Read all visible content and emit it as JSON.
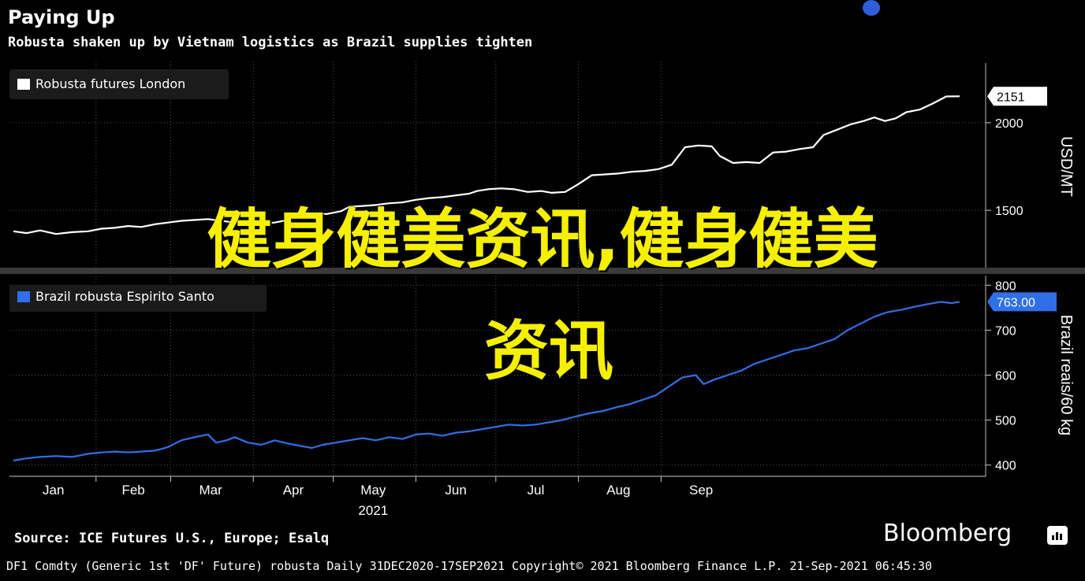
{
  "header": {
    "title": "Paying Up",
    "subtitle": "Robusta shaken up by Vietnam logistics as Brazil supplies tighten"
  },
  "overlay": {
    "line1": "健身健美资讯,健身健美",
    "line2": "资讯"
  },
  "chart_data": {
    "type": "line",
    "x_label": "2021",
    "months": [
      "Jan",
      "Feb",
      "Mar",
      "Apr",
      "May",
      "Jun",
      "Jul",
      "Aug",
      "Sep"
    ],
    "panels": [
      {
        "series_name": "Robusta futures London",
        "color": "#ffffff",
        "ylabel": "USD/MT",
        "yticks": [
          1500,
          2000
        ],
        "ylim": [
          1150,
          2350
        ],
        "last_value_label": "2151",
        "points": [
          [
            0,
            1380
          ],
          [
            5,
            1370
          ],
          [
            10,
            1385
          ],
          [
            16,
            1365
          ],
          [
            22,
            1375
          ],
          [
            28,
            1380
          ],
          [
            33,
            1395
          ],
          [
            38,
            1400
          ],
          [
            43,
            1410
          ],
          [
            48,
            1405
          ],
          [
            53,
            1420
          ],
          [
            58,
            1430
          ],
          [
            63,
            1440
          ],
          [
            68,
            1445
          ],
          [
            73,
            1450
          ],
          [
            78,
            1440
          ],
          [
            83,
            1430
          ],
          [
            88,
            1435
          ],
          [
            93,
            1425
          ],
          [
            98,
            1430
          ],
          [
            103,
            1445
          ],
          [
            108,
            1460
          ],
          [
            113,
            1475
          ],
          [
            118,
            1480
          ],
          [
            123,
            1495
          ],
          [
            126,
            1520
          ],
          [
            131,
            1525
          ],
          [
            136,
            1530
          ],
          [
            141,
            1540
          ],
          [
            146,
            1545
          ],
          [
            151,
            1560
          ],
          [
            156,
            1570
          ],
          [
            161,
            1575
          ],
          [
            166,
            1585
          ],
          [
            171,
            1595
          ],
          [
            174,
            1610
          ],
          [
            178,
            1620
          ],
          [
            183,
            1625
          ],
          [
            188,
            1620
          ],
          [
            193,
            1605
          ],
          [
            198,
            1610
          ],
          [
            202,
            1600
          ],
          [
            207,
            1605
          ],
          [
            212,
            1650
          ],
          [
            217,
            1700
          ],
          [
            222,
            1705
          ],
          [
            227,
            1710
          ],
          [
            232,
            1720
          ],
          [
            237,
            1725
          ],
          [
            242,
            1735
          ],
          [
            247,
            1760
          ],
          [
            252,
            1860
          ],
          [
            257,
            1870
          ],
          [
            262,
            1865
          ],
          [
            265,
            1810
          ],
          [
            270,
            1770
          ],
          [
            275,
            1775
          ],
          [
            280,
            1770
          ],
          [
            285,
            1830
          ],
          [
            290,
            1835
          ],
          [
            295,
            1850
          ],
          [
            300,
            1860
          ],
          [
            304,
            1930
          ],
          [
            309,
            1960
          ],
          [
            314,
            1990
          ],
          [
            319,
            2010
          ],
          [
            323,
            2030
          ],
          [
            327,
            2010
          ],
          [
            331,
            2025
          ],
          [
            335,
            2060
          ],
          [
            340,
            2075
          ],
          [
            345,
            2110
          ],
          [
            350,
            2150
          ],
          [
            355,
            2151
          ]
        ]
      },
      {
        "series_name": "Brazil robusta Espirito Santo",
        "color": "#2f6fe8",
        "ylabel": "Brazil reais/60 kg",
        "yticks": [
          400,
          500,
          600,
          700,
          800
        ],
        "ylim": [
          375,
          825
        ],
        "last_value_label": "763.00",
        "points": [
          [
            0,
            410
          ],
          [
            5,
            415
          ],
          [
            10,
            418
          ],
          [
            16,
            420
          ],
          [
            22,
            418
          ],
          [
            28,
            425
          ],
          [
            33,
            428
          ],
          [
            38,
            430
          ],
          [
            43,
            428
          ],
          [
            48,
            430
          ],
          [
            53,
            432
          ],
          [
            58,
            440
          ],
          [
            63,
            455
          ],
          [
            68,
            462
          ],
          [
            73,
            468
          ],
          [
            76,
            450
          ],
          [
            80,
            455
          ],
          [
            83,
            462
          ],
          [
            88,
            450
          ],
          [
            93,
            445
          ],
          [
            98,
            455
          ],
          [
            103,
            448
          ],
          [
            108,
            442
          ],
          [
            112,
            438
          ],
          [
            116,
            445
          ],
          [
            121,
            450
          ],
          [
            126,
            455
          ],
          [
            131,
            460
          ],
          [
            136,
            455
          ],
          [
            141,
            462
          ],
          [
            146,
            458
          ],
          [
            151,
            468
          ],
          [
            156,
            470
          ],
          [
            161,
            465
          ],
          [
            166,
            472
          ],
          [
            171,
            475
          ],
          [
            176,
            480
          ],
          [
            181,
            485
          ],
          [
            186,
            490
          ],
          [
            191,
            488
          ],
          [
            196,
            490
          ],
          [
            201,
            495
          ],
          [
            206,
            500
          ],
          [
            211,
            508
          ],
          [
            216,
            515
          ],
          [
            221,
            520
          ],
          [
            226,
            528
          ],
          [
            231,
            535
          ],
          [
            236,
            545
          ],
          [
            241,
            555
          ],
          [
            246,
            575
          ],
          [
            251,
            595
          ],
          [
            256,
            600
          ],
          [
            259,
            580
          ],
          [
            263,
            590
          ],
          [
            268,
            600
          ],
          [
            273,
            610
          ],
          [
            278,
            625
          ],
          [
            283,
            635
          ],
          [
            288,
            645
          ],
          [
            293,
            655
          ],
          [
            298,
            660
          ],
          [
            303,
            670
          ],
          [
            308,
            680
          ],
          [
            313,
            700
          ],
          [
            318,
            715
          ],
          [
            323,
            730
          ],
          [
            328,
            740
          ],
          [
            333,
            745
          ],
          [
            338,
            752
          ],
          [
            343,
            758
          ],
          [
            348,
            763
          ],
          [
            352,
            760
          ],
          [
            355,
            763
          ]
        ]
      }
    ]
  },
  "source": "Source: ICE Futures U.S., Europe; Esalq",
  "brand": "Bloomberg",
  "footer": "DF1 Comdty (Generic 1st 'DF' Future) robusta  Daily 31DEC2020-17SEP2021  Copyright© 2021 Bloomberg Finance L.P.  21-Sep-2021 06:45:30"
}
